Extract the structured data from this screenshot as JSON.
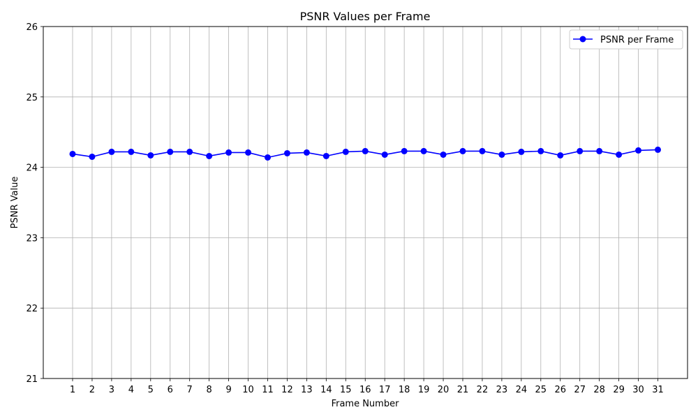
{
  "chart_data": {
    "type": "line",
    "title": "PSNR Values per Frame",
    "xlabel": "Frame Number",
    "ylabel": "PSNR Value",
    "x": [
      1,
      2,
      3,
      4,
      5,
      6,
      7,
      8,
      9,
      10,
      11,
      12,
      13,
      14,
      15,
      16,
      17,
      18,
      19,
      20,
      21,
      22,
      23,
      24,
      25,
      26,
      27,
      28,
      29,
      30,
      31
    ],
    "series": [
      {
        "name": "PSNR per Frame",
        "color": "#0000ff",
        "marker": "circle",
        "values": [
          24.19,
          24.15,
          24.22,
          24.22,
          24.17,
          24.22,
          24.22,
          24.16,
          24.21,
          24.21,
          24.14,
          24.2,
          24.21,
          24.16,
          24.22,
          24.23,
          24.18,
          24.23,
          24.23,
          24.18,
          24.23,
          24.23,
          24.18,
          24.22,
          24.23,
          24.17,
          24.23,
          24.23,
          24.18,
          24.24,
          24.25
        ]
      }
    ],
    "ylim": [
      21,
      26
    ],
    "yticks": [
      21,
      22,
      23,
      24,
      25,
      26
    ],
    "xticks": [
      1,
      2,
      3,
      4,
      5,
      6,
      7,
      8,
      9,
      10,
      11,
      12,
      13,
      14,
      15,
      16,
      17,
      18,
      19,
      20,
      21,
      22,
      23,
      24,
      25,
      26,
      27,
      28,
      29,
      30,
      31
    ],
    "grid": true,
    "legend_position": "top-right"
  }
}
